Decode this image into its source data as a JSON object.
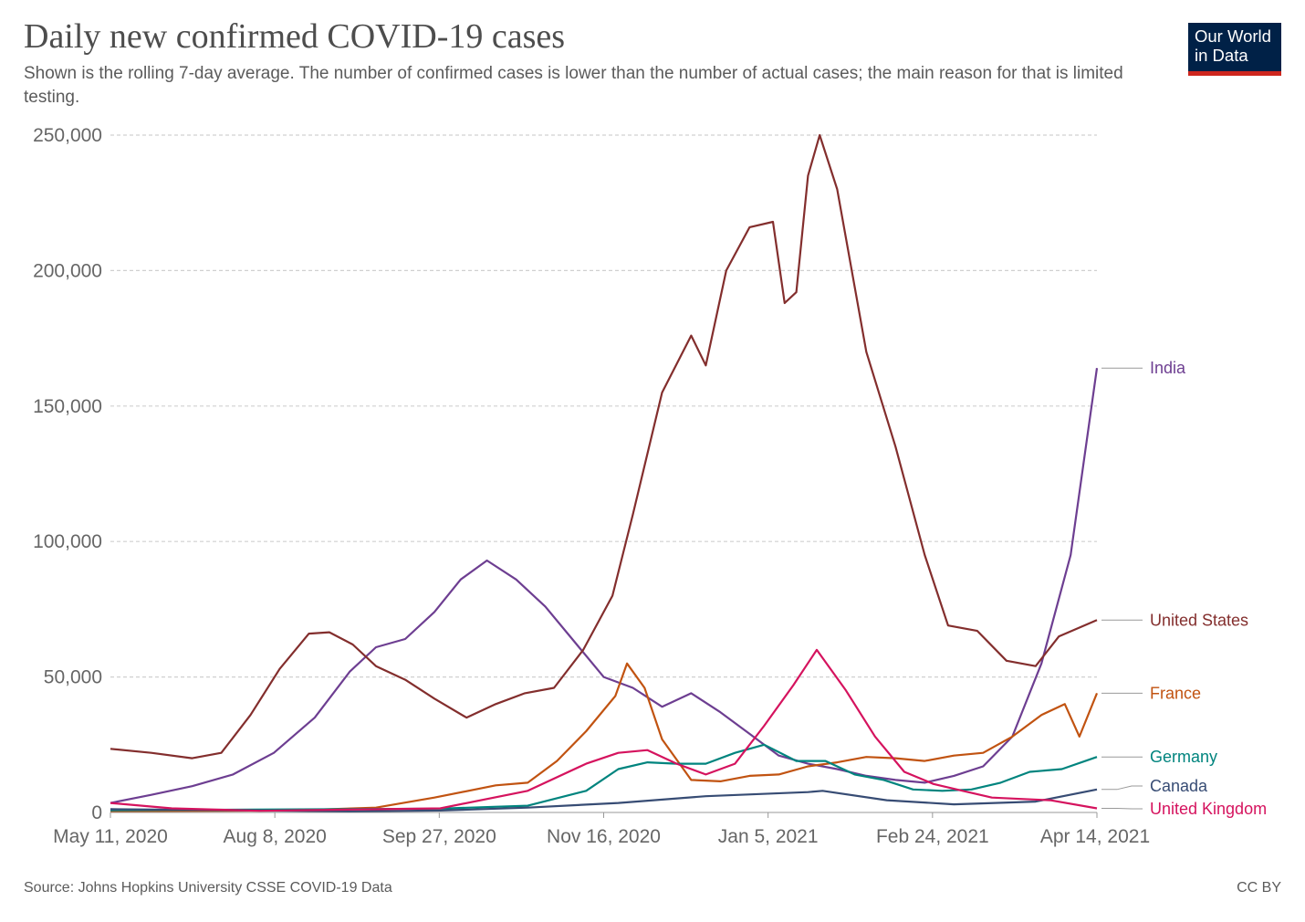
{
  "header": {
    "title": "Daily new confirmed COVID-19 cases",
    "subtitle": "Shown is the rolling 7-day average. The number of confirmed cases is lower than the number of actual cases; the main reason for that is limited testing."
  },
  "logo": {
    "line1": "Our World",
    "line2": "in Data",
    "bg_color": "#002147",
    "accent_color": "#ce261e"
  },
  "footer": {
    "source": "Source: Johns Hopkins University CSSE COVID-19 Data",
    "license": "CC BY"
  },
  "chart_data": {
    "type": "line",
    "title": "Daily new confirmed COVID-19 cases",
    "subtitle": "Shown is the rolling 7-day average. The number of confirmed cases is lower than the number of actual cases; the main reason for that is limited testing.",
    "xlabel": "",
    "ylabel": "",
    "x_range": [
      "2020-05-11",
      "2021-04-14"
    ],
    "x_ticks": [
      "May 11, 2020",
      "Aug 8, 2020",
      "Sep 27, 2020",
      "Nov 16, 2020",
      "Jan 5, 2021",
      "Feb 24, 2021",
      "Apr 14, 2021"
    ],
    "ylim": [
      0,
      250000
    ],
    "y_ticks": [
      0,
      50000,
      100000,
      150000,
      200000,
      250000
    ],
    "y_tick_labels": [
      "0",
      "50,000",
      "100,000",
      "150,000",
      "200,000",
      "250,000"
    ],
    "grid": "horizontal dashed",
    "legend": "inline labels at right end of lines",
    "series": [
      {
        "name": "India",
        "color": "#6d3e91",
        "points": [
          [
            "2020-05-11",
            3500
          ],
          [
            "2020-05-25",
            6500
          ],
          [
            "2020-06-08",
            9700
          ],
          [
            "2020-06-22",
            14000
          ],
          [
            "2020-07-06",
            22000
          ],
          [
            "2020-07-20",
            35000
          ],
          [
            "2020-08-01",
            52000
          ],
          [
            "2020-08-10",
            61000
          ],
          [
            "2020-08-20",
            64000
          ],
          [
            "2020-08-30",
            74000
          ],
          [
            "2020-09-08",
            86000
          ],
          [
            "2020-09-17",
            93000
          ],
          [
            "2020-09-27",
            86000
          ],
          [
            "2020-10-07",
            76000
          ],
          [
            "2020-10-17",
            63000
          ],
          [
            "2020-10-27",
            50000
          ],
          [
            "2020-11-06",
            46000
          ],
          [
            "2020-11-16",
            39000
          ],
          [
            "2020-11-26",
            44000
          ],
          [
            "2020-12-06",
            37000
          ],
          [
            "2020-12-16",
            29000
          ],
          [
            "2020-12-26",
            21000
          ],
          [
            "2021-01-05",
            18000
          ],
          [
            "2021-01-15",
            16000
          ],
          [
            "2021-01-25",
            13500
          ],
          [
            "2021-02-04",
            12000
          ],
          [
            "2021-02-14",
            11000
          ],
          [
            "2021-02-24",
            13500
          ],
          [
            "2021-03-06",
            17000
          ],
          [
            "2021-03-16",
            28000
          ],
          [
            "2021-03-26",
            55000
          ],
          [
            "2021-04-05",
            95000
          ],
          [
            "2021-04-14",
            164000
          ]
        ]
      },
      {
        "name": "United States",
        "color": "#832e2d",
        "points": [
          [
            "2020-05-11",
            23500
          ],
          [
            "2020-05-25",
            22000
          ],
          [
            "2020-06-08",
            20000
          ],
          [
            "2020-06-18",
            22000
          ],
          [
            "2020-06-28",
            36000
          ],
          [
            "2020-07-08",
            53000
          ],
          [
            "2020-07-18",
            66000
          ],
          [
            "2020-07-25",
            66500
          ],
          [
            "2020-08-02",
            62000
          ],
          [
            "2020-08-10",
            54000
          ],
          [
            "2020-08-20",
            49000
          ],
          [
            "2020-08-30",
            42000
          ],
          [
            "2020-09-10",
            35000
          ],
          [
            "2020-09-20",
            40000
          ],
          [
            "2020-09-30",
            44000
          ],
          [
            "2020-10-10",
            46000
          ],
          [
            "2020-10-20",
            60000
          ],
          [
            "2020-10-30",
            80000
          ],
          [
            "2020-11-06",
            110000
          ],
          [
            "2020-11-16",
            155000
          ],
          [
            "2020-11-26",
            176000
          ],
          [
            "2020-12-01",
            165000
          ],
          [
            "2020-12-08",
            200000
          ],
          [
            "2020-12-16",
            216000
          ],
          [
            "2020-12-24",
            218000
          ],
          [
            "2020-12-28",
            188000
          ],
          [
            "2021-01-01",
            192000
          ],
          [
            "2021-01-05",
            235000
          ],
          [
            "2021-01-09",
            250000
          ],
          [
            "2021-01-15",
            230000
          ],
          [
            "2021-01-25",
            170000
          ],
          [
            "2021-02-04",
            135000
          ],
          [
            "2021-02-14",
            95000
          ],
          [
            "2021-02-22",
            69000
          ],
          [
            "2021-03-04",
            67000
          ],
          [
            "2021-03-14",
            56000
          ],
          [
            "2021-03-24",
            54000
          ],
          [
            "2021-04-01",
            65000
          ],
          [
            "2021-04-14",
            71000
          ]
        ]
      },
      {
        "name": "France",
        "color": "#c15311",
        "points": [
          [
            "2020-05-11",
            500
          ],
          [
            "2020-07-11",
            700
          ],
          [
            "2020-08-10",
            1800
          ],
          [
            "2020-08-30",
            5500
          ],
          [
            "2020-09-20",
            10000
          ],
          [
            "2020-10-01",
            11000
          ],
          [
            "2020-10-11",
            19000
          ],
          [
            "2020-10-21",
            30000
          ],
          [
            "2020-10-31",
            43000
          ],
          [
            "2020-11-04",
            55000
          ],
          [
            "2020-11-10",
            46000
          ],
          [
            "2020-11-16",
            27000
          ],
          [
            "2020-11-26",
            12000
          ],
          [
            "2020-12-06",
            11500
          ],
          [
            "2020-12-16",
            13500
          ],
          [
            "2020-12-26",
            14000
          ],
          [
            "2021-01-05",
            17000
          ],
          [
            "2021-01-15",
            18500
          ],
          [
            "2021-01-25",
            20500
          ],
          [
            "2021-02-04",
            20000
          ],
          [
            "2021-02-14",
            19000
          ],
          [
            "2021-02-24",
            21000
          ],
          [
            "2021-03-06",
            22000
          ],
          [
            "2021-03-16",
            28000
          ],
          [
            "2021-03-26",
            36000
          ],
          [
            "2021-04-03",
            40000
          ],
          [
            "2021-04-08",
            28000
          ],
          [
            "2021-04-14",
            44000
          ]
        ]
      },
      {
        "name": "Germany",
        "color": "#00847e",
        "points": [
          [
            "2020-05-11",
            800
          ],
          [
            "2020-09-01",
            1400
          ],
          [
            "2020-10-01",
            2500
          ],
          [
            "2020-10-21",
            8000
          ],
          [
            "2020-11-01",
            16000
          ],
          [
            "2020-11-11",
            18500
          ],
          [
            "2020-11-21",
            18000
          ],
          [
            "2020-12-01",
            18000
          ],
          [
            "2020-12-11",
            22000
          ],
          [
            "2020-12-21",
            25000
          ],
          [
            "2021-01-01",
            19000
          ],
          [
            "2021-01-11",
            19000
          ],
          [
            "2021-01-21",
            14000
          ],
          [
            "2021-01-31",
            12000
          ],
          [
            "2021-02-10",
            8500
          ],
          [
            "2021-02-20",
            8000
          ],
          [
            "2021-03-02",
            8500
          ],
          [
            "2021-03-12",
            11000
          ],
          [
            "2021-03-22",
            15000
          ],
          [
            "2021-04-02",
            16000
          ],
          [
            "2021-04-14",
            20500
          ]
        ]
      },
      {
        "name": "Canada",
        "color": "#374c74",
        "points": [
          [
            "2020-05-11",
            1200
          ],
          [
            "2020-08-01",
            400
          ],
          [
            "2020-09-01",
            700
          ],
          [
            "2020-10-01",
            1800
          ],
          [
            "2020-11-01",
            3500
          ],
          [
            "2020-12-01",
            6000
          ],
          [
            "2021-01-05",
            7500
          ],
          [
            "2021-01-10",
            8000
          ],
          [
            "2021-02-01",
            4500
          ],
          [
            "2021-02-24",
            3000
          ],
          [
            "2021-03-24",
            4000
          ],
          [
            "2021-04-14",
            8500
          ]
        ]
      },
      {
        "name": "United Kingdom",
        "color": "#d5135e",
        "points": [
          [
            "2020-05-11",
            3500
          ],
          [
            "2020-06-01",
            1500
          ],
          [
            "2020-07-01",
            600
          ],
          [
            "2020-09-01",
            1500
          ],
          [
            "2020-10-01",
            8000
          ],
          [
            "2020-10-21",
            18000
          ],
          [
            "2020-11-01",
            22000
          ],
          [
            "2020-11-11",
            23000
          ],
          [
            "2020-11-21",
            18000
          ],
          [
            "2020-12-01",
            14000
          ],
          [
            "2020-12-11",
            18000
          ],
          [
            "2020-12-21",
            32000
          ],
          [
            "2020-12-31",
            47000
          ],
          [
            "2021-01-08",
            60000
          ],
          [
            "2021-01-18",
            45000
          ],
          [
            "2021-01-28",
            28000
          ],
          [
            "2021-02-07",
            15000
          ],
          [
            "2021-02-17",
            10500
          ],
          [
            "2021-02-27",
            8000
          ],
          [
            "2021-03-09",
            5500
          ],
          [
            "2021-03-19",
            5000
          ],
          [
            "2021-03-29",
            4500
          ],
          [
            "2021-04-14",
            1500
          ]
        ]
      }
    ]
  }
}
